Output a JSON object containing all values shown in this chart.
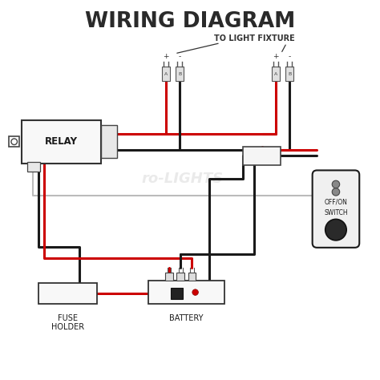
{
  "title": "WIRING DIAGRAM",
  "title_fontsize": 19,
  "title_fontweight": "bold",
  "bg_color": "#ffffff",
  "wire_red": "#cc0000",
  "wire_black": "#1a1a1a",
  "wire_gray": "#bbbbbb",
  "label_fontsize": 7.0,
  "to_light_text": "TO LIGHT FIXTURE",
  "relay_label": "RELAY",
  "fuse_label": "FUSE\nHOLDER",
  "battery_label": "BATTERY",
  "switch_label1": "OFF/ON",
  "switch_label2": "SWITCH",
  "figsize": [
    4.74,
    4.74
  ],
  "dpi": 100,
  "xlim": [
    0,
    10
  ],
  "ylim": [
    0,
    10
  ]
}
